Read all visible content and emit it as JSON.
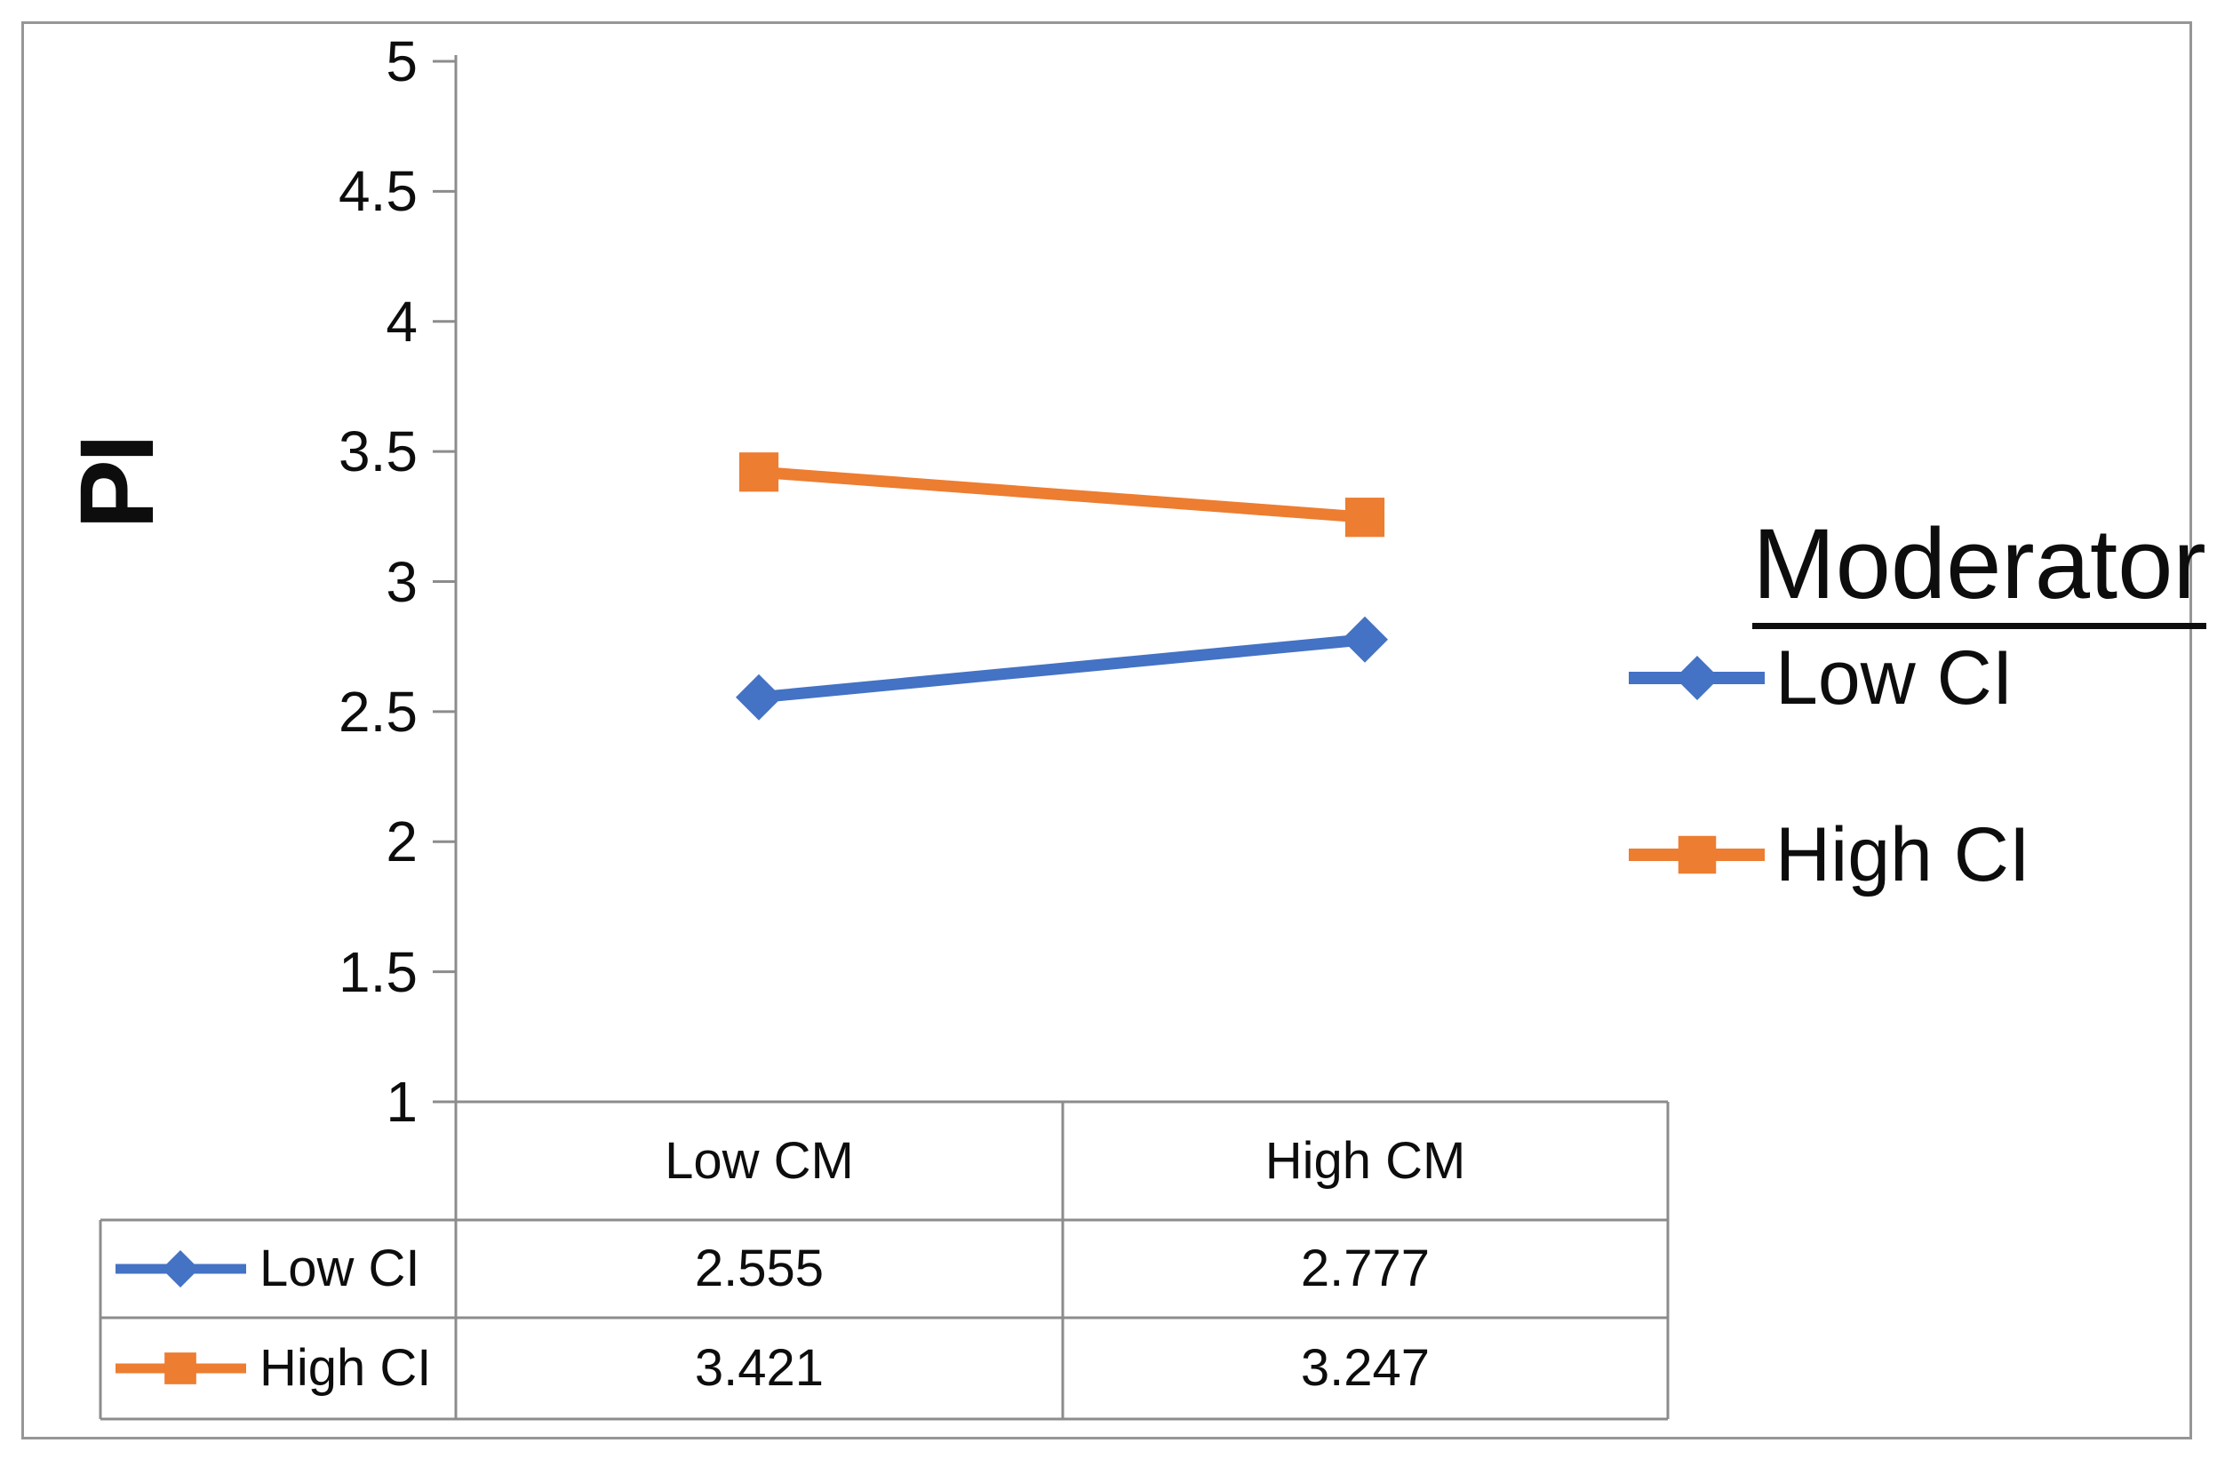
{
  "figure": {
    "ylabel": "PI",
    "border_color": "#969696",
    "line_color": "#8c8c8c",
    "text_color": "#0d0d0d"
  },
  "legend": {
    "title": "Moderator",
    "items": [
      {
        "label": "Low CI"
      },
      {
        "label": "High CI"
      }
    ]
  },
  "chart_data": {
    "type": "line",
    "title": "",
    "xlabel": "",
    "ylabel": "PI",
    "categories": [
      "Low CM",
      "High CM"
    ],
    "series": [
      {
        "name": "Low CI",
        "values": [
          2.555,
          2.777
        ],
        "color": "#4472C4",
        "marker": "diamond"
      },
      {
        "name": "High CI",
        "values": [
          3.421,
          3.247
        ],
        "color": "#ED7D31",
        "marker": "square"
      }
    ],
    "ylim": [
      1,
      5
    ],
    "yticks": [
      5,
      4.5,
      4,
      3.5,
      3,
      2.5,
      2,
      1.5,
      1
    ],
    "grid": false,
    "legend_title": "Moderator",
    "legend_position": "right",
    "data_table_shown": true
  }
}
